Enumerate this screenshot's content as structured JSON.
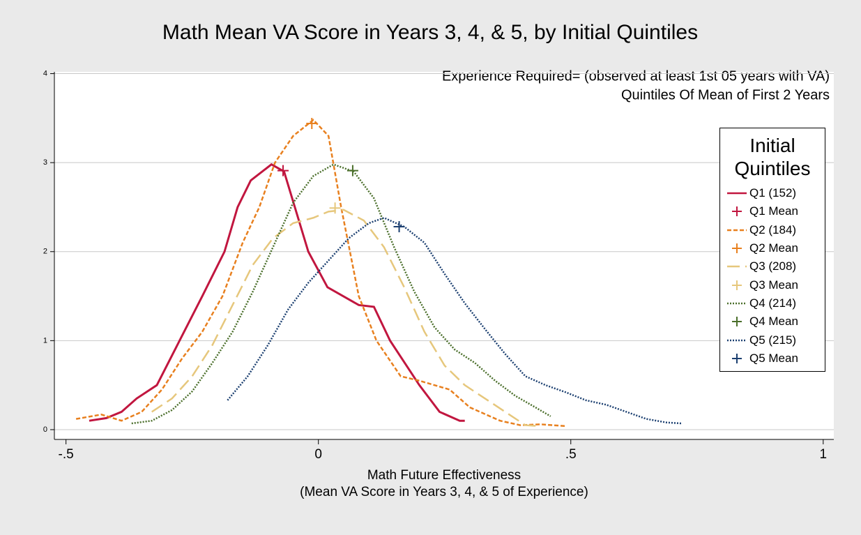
{
  "chart_data": {
    "type": "line",
    "title": "Math Mean VA Score in Years 3, 4, & 5, by Initial Quintiles",
    "annotations": [
      "Experience Required= (observed at least 1st 05 years with VA)",
      "Quintiles Of Mean of First 2 Years"
    ],
    "xlabel": [
      "Math Future Effectiveness",
      "(Mean VA Score in Years 3, 4, & 5 of Experience)"
    ],
    "legend_title": "Initial Quintiles",
    "xlim": [
      -0.523,
      1.021
    ],
    "ylim": [
      -0.11,
      4.02
    ],
    "xticks": [
      {
        "value": -0.5,
        "label": "-.5"
      },
      0,
      {
        "value": 0.5,
        "label": ".5"
      },
      1
    ],
    "yticks": [
      0,
      1,
      2,
      3,
      4
    ],
    "grid": true,
    "series": [
      {
        "name": "Q1 (152)",
        "color": "#c1163f",
        "dash": "solid",
        "x": [
          -0.454,
          -0.42,
          -0.39,
          -0.36,
          -0.32,
          -0.275,
          -0.23,
          -0.186,
          -0.16,
          -0.134,
          -0.093,
          -0.068,
          -0.02,
          0.018,
          0.08,
          0.11,
          0.142,
          0.2,
          0.24,
          0.28,
          0.29
        ],
        "values": [
          0.1,
          0.13,
          0.2,
          0.35,
          0.5,
          1,
          1.5,
          2,
          2.5,
          2.8,
          2.98,
          2.9,
          2,
          1.6,
          1.4,
          1.38,
          1,
          0.5,
          0.2,
          0.1,
          0.1
        ]
      },
      {
        "name": "Q2 (184)",
        "color": "#e8801f",
        "dash": "short",
        "x": [
          -0.48,
          -0.43,
          -0.39,
          -0.35,
          -0.31,
          -0.27,
          -0.23,
          -0.19,
          -0.15,
          -0.117,
          -0.086,
          -0.05,
          -0.01,
          0.02,
          0.045,
          0.08,
          0.115,
          0.163,
          0.2,
          0.26,
          0.3,
          0.36,
          0.4,
          0.44,
          0.49
        ],
        "values": [
          0.12,
          0.17,
          0.1,
          0.2,
          0.45,
          0.8,
          1.1,
          1.5,
          2.1,
          2.5,
          3,
          3.3,
          3.48,
          3.3,
          2.5,
          1.5,
          1,
          0.6,
          0.55,
          0.45,
          0.25,
          0.1,
          0.05,
          0.06,
          0.04
        ]
      },
      {
        "name": "Q3 (208)",
        "color": "#e6c77c",
        "dash": "long",
        "x": [
          -0.33,
          -0.29,
          -0.25,
          -0.21,
          -0.17,
          -0.13,
          -0.09,
          -0.05,
          -0.01,
          0.02,
          0.05,
          0.09,
          0.13,
          0.17,
          0.21,
          0.25,
          0.29,
          0.33,
          0.37,
          0.41,
          0.44
        ],
        "values": [
          0.2,
          0.35,
          0.6,
          0.95,
          1.4,
          1.85,
          2.15,
          2.32,
          2.38,
          2.45,
          2.47,
          2.35,
          2.05,
          1.6,
          1.1,
          0.72,
          0.5,
          0.35,
          0.2,
          0.05,
          0.04
        ]
      },
      {
        "name": "Q4 (214)",
        "color": "#4b6f2b",
        "dash": "dot",
        "x": [
          -0.37,
          -0.33,
          -0.29,
          -0.25,
          -0.21,
          -0.17,
          -0.13,
          -0.09,
          -0.05,
          -0.01,
          0.03,
          0.07,
          0.11,
          0.15,
          0.19,
          0.23,
          0.27,
          0.31,
          0.35,
          0.39,
          0.43,
          0.46
        ],
        "values": [
          0.07,
          0.1,
          0.22,
          0.43,
          0.75,
          1.1,
          1.55,
          2.05,
          2.55,
          2.85,
          2.98,
          2.9,
          2.6,
          2.05,
          1.55,
          1.15,
          0.9,
          0.75,
          0.55,
          0.38,
          0.25,
          0.15
        ]
      },
      {
        "name": "Q5 (215)",
        "color": "#1b3f70",
        "dash": "dot",
        "x": [
          -0.18,
          -0.14,
          -0.1,
          -0.06,
          -0.02,
          0.02,
          0.06,
          0.1,
          0.13,
          0.17,
          0.21,
          0.25,
          0.29,
          0.33,
          0.37,
          0.41,
          0.45,
          0.49,
          0.53,
          0.57,
          0.61,
          0.65,
          0.69,
          0.72
        ],
        "values": [
          0.33,
          0.6,
          0.95,
          1.35,
          1.65,
          1.9,
          2.15,
          2.32,
          2.38,
          2.28,
          2.1,
          1.75,
          1.42,
          1.13,
          0.85,
          0.6,
          0.5,
          0.42,
          0.33,
          0.28,
          0.2,
          0.12,
          0.08,
          0.07
        ]
      }
    ],
    "means": [
      {
        "name": "Q1 Mean",
        "color": "#c1163f",
        "x": -0.07,
        "value": 2.91
      },
      {
        "name": "Q2 Mean",
        "color": "#e8801f",
        "x": -0.013,
        "value": 3.44
      },
      {
        "name": "Q3 Mean",
        "color": "#e6c77c",
        "x": 0.033,
        "value": 2.49
      },
      {
        "name": "Q4 Mean",
        "color": "#4b6f2b",
        "x": 0.068,
        "value": 2.91
      },
      {
        "name": "Q5 Mean",
        "color": "#1b3f70",
        "x": 0.16,
        "value": 2.28
      }
    ]
  }
}
